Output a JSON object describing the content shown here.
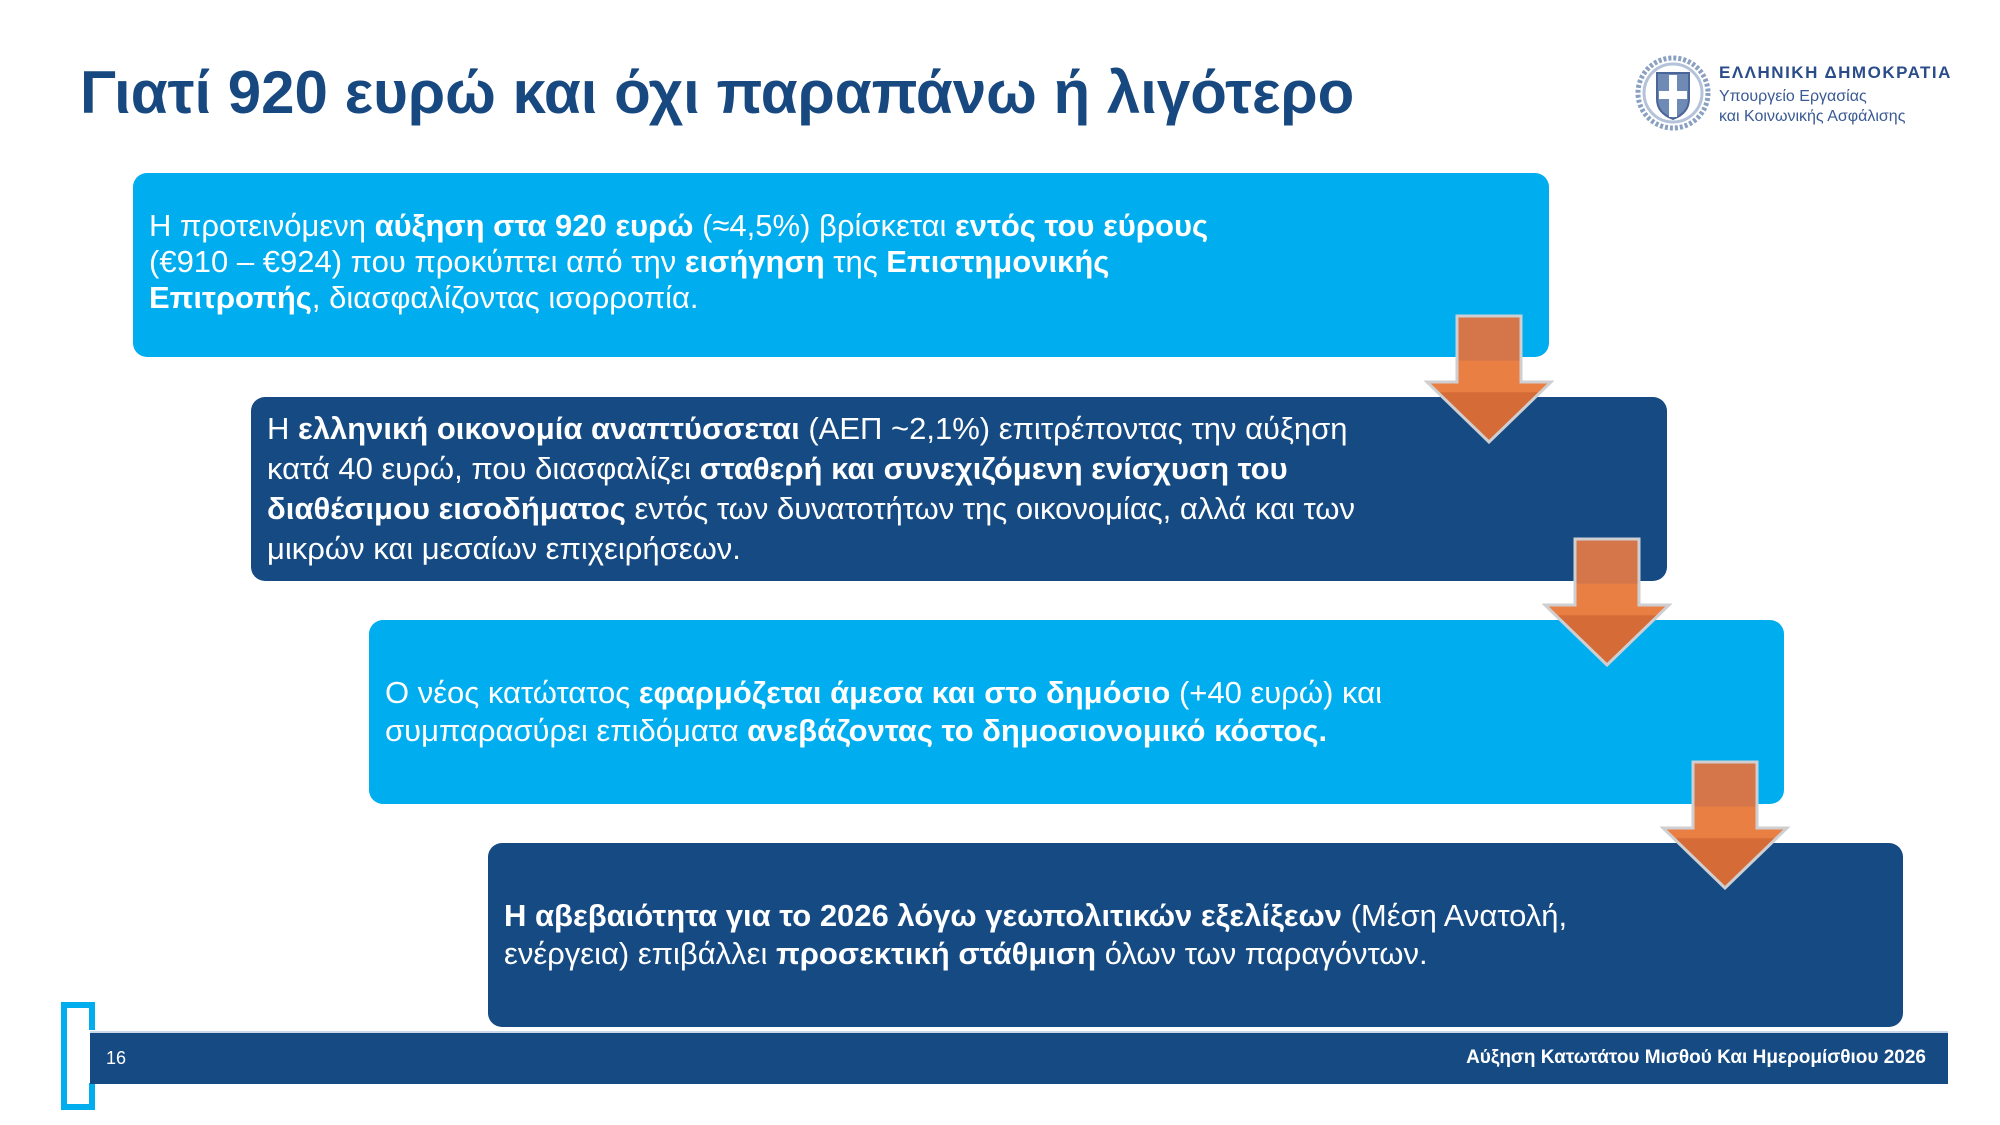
{
  "slide": {
    "title": "Γιατί 920 ευρώ και όχι παραπάνω ή λιγότερο",
    "page_number": "16",
    "footer_caption": "Αύξηση Κατωτάτου Μισθού Και Ημερομίσθιου 2026"
  },
  "logo": {
    "line1": "ΕΛΛΗΝΙΚΗ ΔΗΜΟΚΡΑΤΙΑ",
    "line2": "Υπουργείο Εργασίας",
    "line3": "και Κοινωνικής Ασφάλισης",
    "icon": "greek-coat-of-arms-icon"
  },
  "colors": {
    "title": "#17487f",
    "light_box": "#00aeef",
    "dark_box": "#164a83",
    "arrow": "#e87b3e",
    "footer": "#164a83"
  },
  "steps": [
    {
      "style": "light",
      "segments": [
        {
          "t": "Η προτεινόμενη ",
          "b": false
        },
        {
          "t": "αύξηση στα 920 ευρώ",
          "b": true
        },
        {
          "t": " (≈4,5%) βρίσκεται ",
          "b": false
        },
        {
          "t": "εντός του εύρους",
          "b": true
        },
        {
          "t": " (€910 – €924) που προκύπτει από την ",
          "b": false
        },
        {
          "t": "εισήγηση",
          "b": true
        },
        {
          "t": " της ",
          "b": false
        },
        {
          "t": "Επιστημονικής Επιτροπής",
          "b": true
        },
        {
          "t": ", διασφαλίζοντας ισορροπία.",
          "b": false
        }
      ]
    },
    {
      "style": "dark",
      "segments": [
        {
          "t": "Η ",
          "b": false
        },
        {
          "t": "ελληνική οικονομία αναπτύσσεται",
          "b": true
        },
        {
          "t": " (ΑΕΠ ~2,1%) επιτρέποντας την αύξηση κατά 40 ευρώ, που διασφαλίζει ",
          "b": false
        },
        {
          "t": "σταθερή και συνεχιζόμενη ενίσχυση του διαθέσιμου εισοδήματος",
          "b": true
        },
        {
          "t": " εντός των δυνατοτήτων της οικονομίας, αλλά και των μικρών και μεσαίων επιχειρήσεων.",
          "b": false
        }
      ]
    },
    {
      "style": "light",
      "segments": [
        {
          "t": "Ο νέος κατώτατος ",
          "b": false
        },
        {
          "t": "εφαρμόζεται άμεσα και στο δημόσιο",
          "b": true
        },
        {
          "t": " (+40 ευρώ) και συμπαρασύρει επιδόματα ",
          "b": false
        },
        {
          "t": "ανεβάζοντας το δημοσιονομικό κόστος.",
          "b": true
        }
      ]
    },
    {
      "style": "dark",
      "segments": [
        {
          "t": "Η αβεβαιότητα για το 2026 λόγω γεωπολιτικών εξελίξεων",
          "b": true
        },
        {
          "t": " (Μέση Ανατολή, ενέργεια) επιβάλλει ",
          "b": false
        },
        {
          "t": "προσεκτική στάθμιση",
          "b": true
        },
        {
          "t": " όλων των παραγόντων.",
          "b": false
        }
      ]
    }
  ],
  "arrows": [
    {
      "icon": "down-arrow-icon"
    },
    {
      "icon": "down-arrow-icon"
    },
    {
      "icon": "down-arrow-icon"
    }
  ]
}
